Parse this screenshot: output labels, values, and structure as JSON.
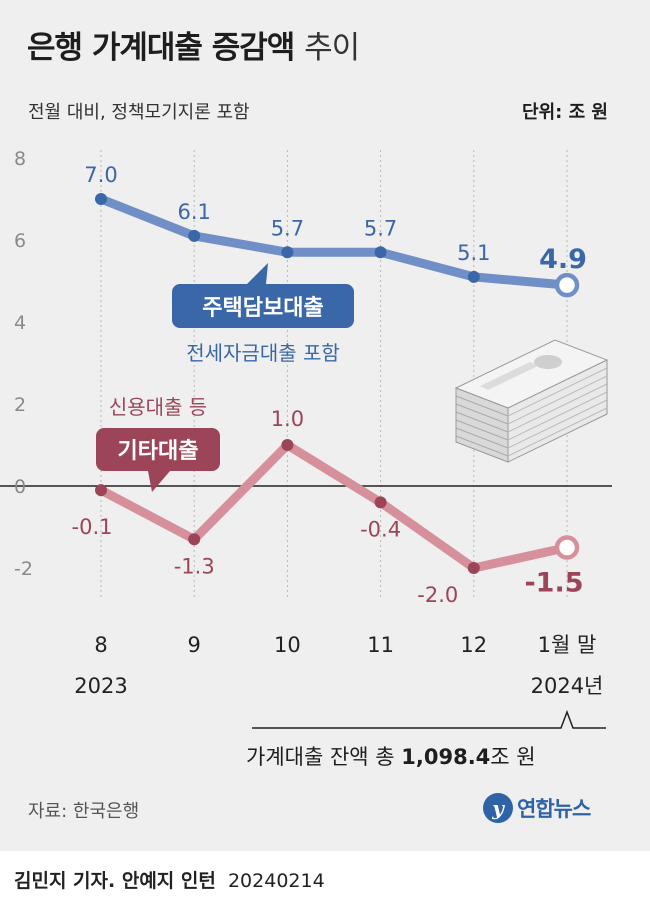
{
  "header": {
    "title_main": "은행 가계대출 증감액",
    "title_suffix": "추이",
    "subtitle": "전월 대비, 정책모기지론 포함",
    "unit": "단위: 조 원"
  },
  "chart_data": {
    "type": "line",
    "categories": [
      "8",
      "9",
      "10",
      "11",
      "12",
      "1월 말"
    ],
    "category_years": [
      "2023",
      "",
      "",
      "",
      "",
      "2024년"
    ],
    "yticks": [
      "8",
      "6",
      "4",
      "2",
      "0",
      "-2"
    ],
    "ylim": [
      -3,
      8
    ],
    "grid": "vertical dotted",
    "series": [
      {
        "key": "mortgage",
        "name": "주택담보대출",
        "note": "전세자금대출 포함",
        "color": "#6f8fc6",
        "label_color": "#3a67a8",
        "values": [
          7.0,
          6.1,
          5.7,
          5.7,
          5.1,
          4.9
        ],
        "labels": [
          "7.0",
          "6.1",
          "5.7",
          "5.7",
          "5.1",
          "4.9"
        ]
      },
      {
        "key": "other",
        "name": "기타대출",
        "note": "신용대출 등",
        "color": "#d6909c",
        "label_color": "#9c4558",
        "values": [
          -0.1,
          -1.3,
          1.0,
          -0.4,
          -2.0,
          -1.5
        ],
        "labels": [
          "-0.1",
          "-1.3",
          "1.0",
          "-0.4",
          "-2.0",
          "-1.5"
        ]
      }
    ]
  },
  "total": {
    "prefix": "가계대출 잔액 총",
    "value": "1,098.4",
    "suffix": "조 원"
  },
  "footer": {
    "source": "자료: 한국은행",
    "logo_text": "연합뉴스",
    "logo_mark": "y",
    "credit_name": "김민지 기자. 안예지 인턴",
    "credit_date": "20240214"
  },
  "colors": {
    "panel_bg": "#efefef",
    "mortgage_box": "#3a67a8",
    "other_box": "#9c4558"
  }
}
